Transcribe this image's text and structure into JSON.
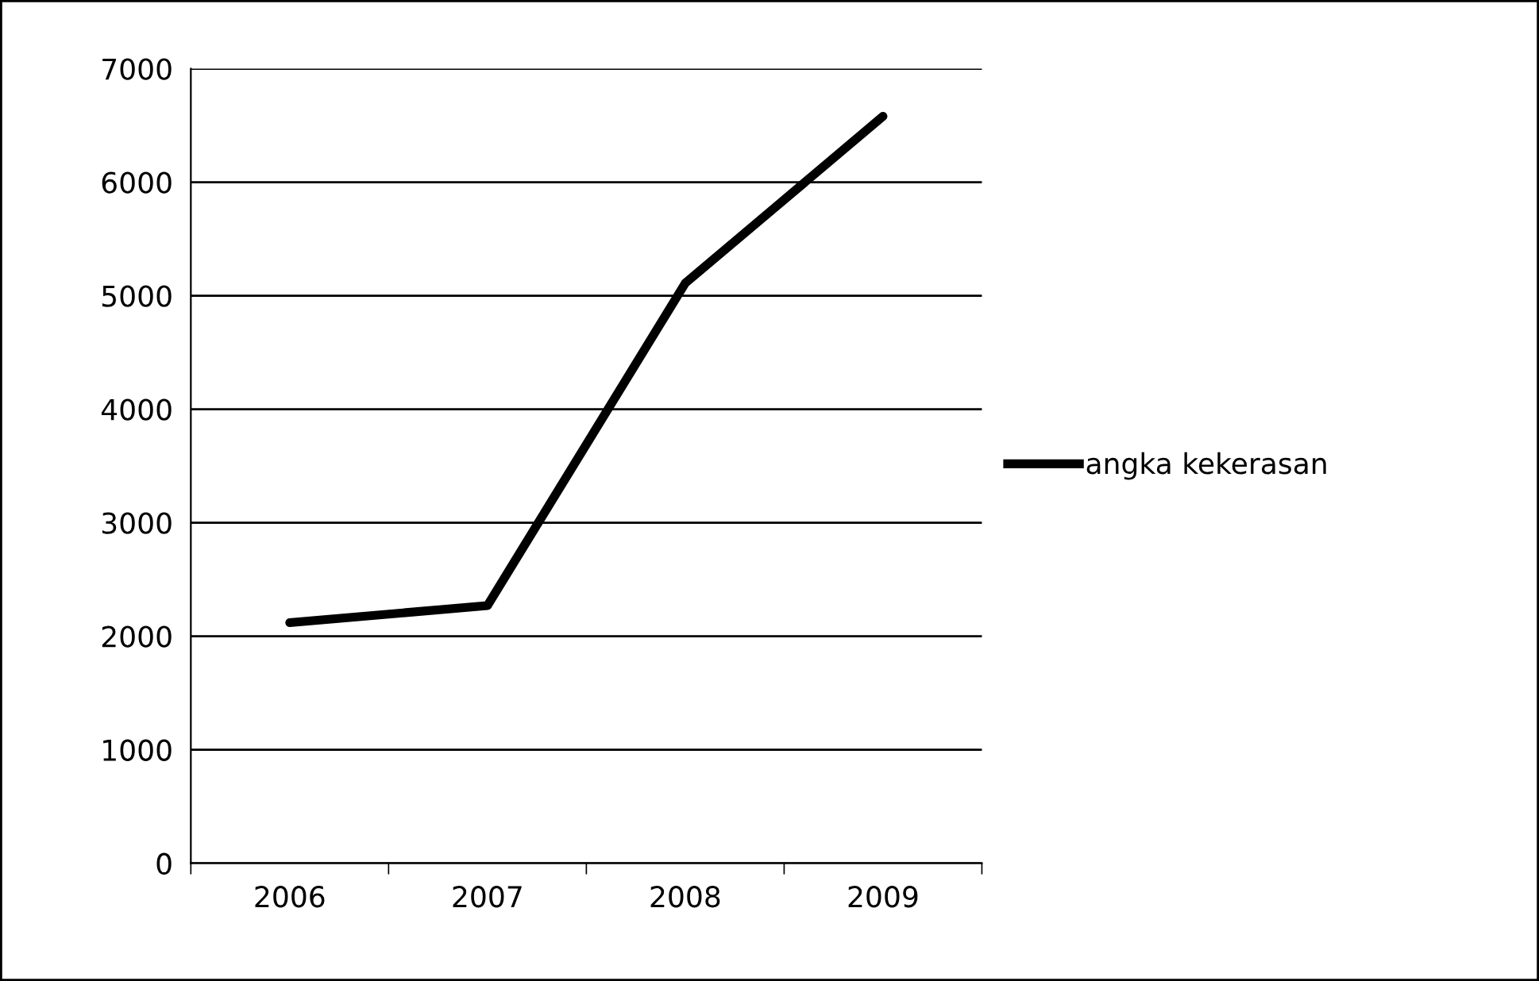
{
  "chart_data": {
    "type": "line",
    "categories": [
      "2006",
      "2007",
      "2008",
      "2009"
    ],
    "series": [
      {
        "name": "angka kekerasan",
        "color": "#000000",
        "values": [
          2120,
          2270,
          5110,
          6580
        ]
      }
    ],
    "ylim": [
      0,
      7000
    ],
    "yticks": [
      0,
      1000,
      2000,
      3000,
      4000,
      5000,
      6000,
      7000
    ],
    "grid": "y",
    "legend": "right",
    "marker": "none",
    "line_style": "solid"
  }
}
